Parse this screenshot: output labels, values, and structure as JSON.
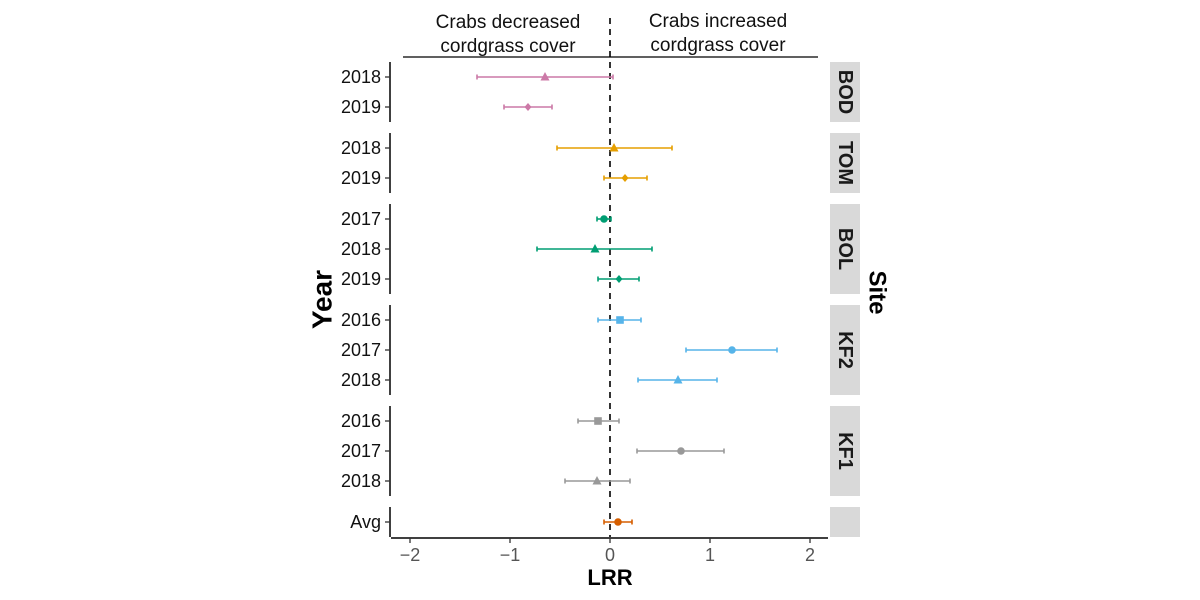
{
  "chart_data": {
    "type": "forest",
    "xlabel": "LRR",
    "ylabel": "Year",
    "facet_label": "Site",
    "xlim": [
      -2.2,
      2.2
    ],
    "xticks": [
      {
        "value": -2,
        "label": "−2"
      },
      {
        "value": -1,
        "label": "−1"
      },
      {
        "value": 0,
        "label": "0"
      },
      {
        "value": 1,
        "label": "1"
      },
      {
        "value": 2,
        "label": "2"
      }
    ],
    "reference_line": 0,
    "annotations": {
      "left": [
        "Crabs decreased",
        "cordgrass cover"
      ],
      "right": [
        "Crabs increased",
        "cordgrass cover"
      ]
    },
    "groups": [
      {
        "site": "BOD",
        "color": "#CC79A7",
        "rows": [
          {
            "year": "2018",
            "estimate": -0.65,
            "lower": -1.33,
            "upper": 0.03,
            "shape": "triangle"
          },
          {
            "year": "2019",
            "estimate": -0.82,
            "lower": -1.06,
            "upper": -0.58,
            "shape": "diamond"
          }
        ]
      },
      {
        "site": "TOM",
        "color": "#E69F00",
        "rows": [
          {
            "year": "2018",
            "estimate": 0.04,
            "lower": -0.53,
            "upper": 0.62,
            "shape": "triangle"
          },
          {
            "year": "2019",
            "estimate": 0.15,
            "lower": -0.06,
            "upper": 0.37,
            "shape": "diamond"
          }
        ]
      },
      {
        "site": "BOL",
        "color": "#009E73",
        "rows": [
          {
            "year": "2017",
            "estimate": -0.06,
            "lower": -0.13,
            "upper": 0.01,
            "shape": "circle"
          },
          {
            "year": "2018",
            "estimate": -0.15,
            "lower": -0.73,
            "upper": 0.42,
            "shape": "triangle"
          },
          {
            "year": "2019",
            "estimate": 0.09,
            "lower": -0.12,
            "upper": 0.29,
            "shape": "diamond"
          }
        ]
      },
      {
        "site": "KF2",
        "color": "#56B4E9",
        "rows": [
          {
            "year": "2016",
            "estimate": 0.1,
            "lower": -0.12,
            "upper": 0.31,
            "shape": "square"
          },
          {
            "year": "2017",
            "estimate": 1.22,
            "lower": 0.76,
            "upper": 1.67,
            "shape": "circle"
          },
          {
            "year": "2018",
            "estimate": 0.68,
            "lower": 0.28,
            "upper": 1.07,
            "shape": "triangle"
          }
        ]
      },
      {
        "site": "KF1",
        "color": "#999999",
        "rows": [
          {
            "year": "2016",
            "estimate": -0.12,
            "lower": -0.32,
            "upper": 0.09,
            "shape": "square"
          },
          {
            "year": "2017",
            "estimate": 0.71,
            "lower": 0.27,
            "upper": 1.14,
            "shape": "circle"
          },
          {
            "year": "2018",
            "estimate": -0.13,
            "lower": -0.45,
            "upper": 0.2,
            "shape": "triangle"
          }
        ]
      },
      {
        "site": "",
        "color": "#D55E00",
        "rows": [
          {
            "year": "Avg",
            "estimate": 0.08,
            "lower": -0.06,
            "upper": 0.22,
            "shape": "circle"
          }
        ]
      }
    ]
  }
}
